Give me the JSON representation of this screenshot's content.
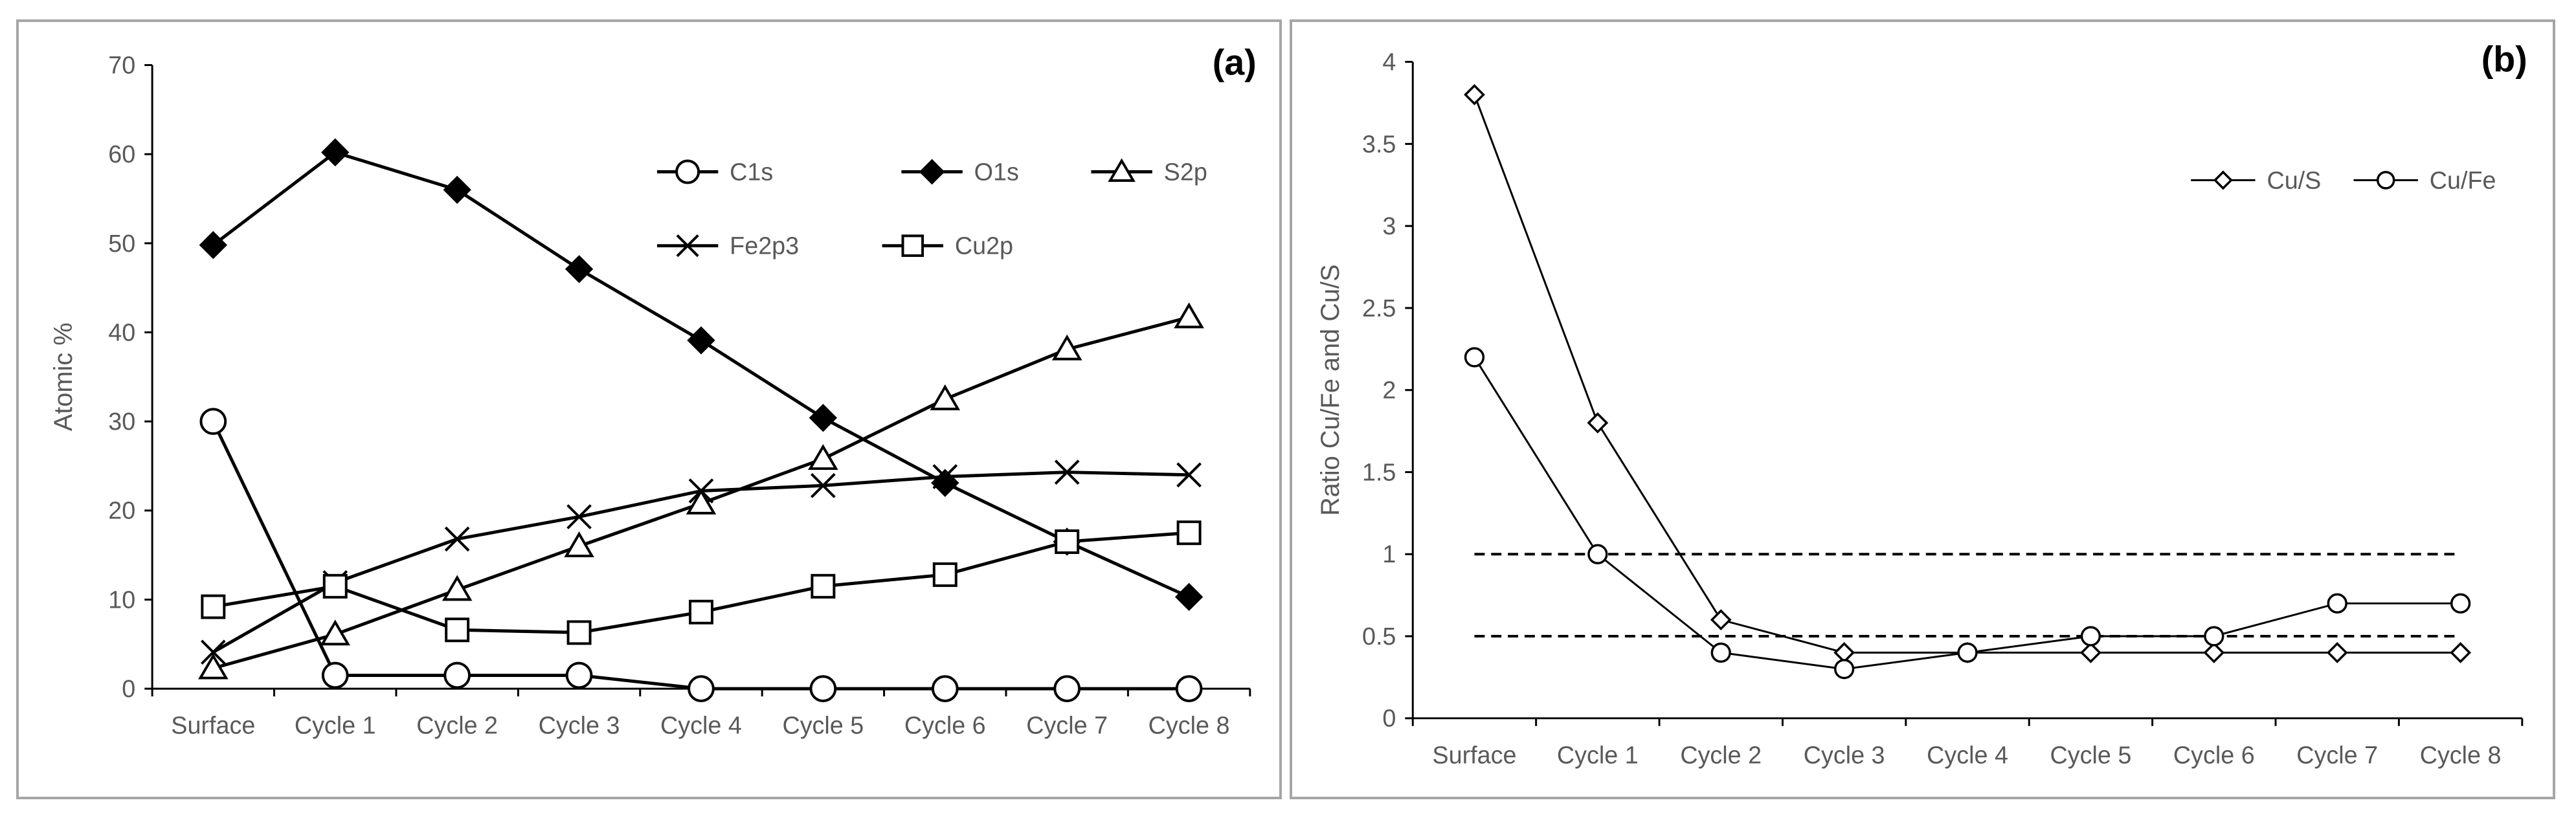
{
  "chart_data": [
    {
      "type": "line",
      "panel_label": "(a)",
      "ylabel": "Atomic %",
      "xlabel": "",
      "ylim": [
        0,
        70
      ],
      "yticks": [
        0,
        10,
        20,
        30,
        40,
        50,
        60,
        70
      ],
      "categories": [
        "Surface",
        "Cycle 1",
        "Cycle 2",
        "Cycle 3",
        "Cycle 4",
        "Cycle 5",
        "Cycle 6",
        "Cycle 7",
        "Cycle 8"
      ],
      "grid": false,
      "legend_placement": "top-right",
      "series": [
        {
          "name": "C1s",
          "marker": "circle-open",
          "values": [
            30,
            1.5,
            1.5,
            1.5,
            0,
            0,
            0,
            0,
            0
          ]
        },
        {
          "name": "O1s",
          "marker": "diamond-filled",
          "values": [
            49.8,
            60.2,
            56,
            47.1,
            39.1,
            30.4,
            23.1,
            16.5,
            10.3
          ]
        },
        {
          "name": "S2p",
          "marker": "triangle-open",
          "values": [
            2.3,
            6.1,
            11.1,
            16,
            20.8,
            25.8,
            32.5,
            38.1,
            41.7
          ]
        },
        {
          "name": "Fe2p3",
          "marker": "x",
          "values": [
            4.1,
            11.9,
            16.8,
            19.3,
            22.2,
            22.8,
            23.8,
            24.3,
            24
          ]
        },
        {
          "name": "Cu2p",
          "marker": "square-open",
          "values": [
            9.2,
            11.5,
            6.6,
            6.3,
            8.6,
            11.5,
            12.8,
            16.5,
            17.5
          ]
        }
      ]
    },
    {
      "type": "line",
      "panel_label": "(b)",
      "ylabel": "Ratio Cu/Fe and Cu/S",
      "xlabel": "",
      "ylim": [
        0,
        4
      ],
      "yticks": [
        0,
        0.5,
        1,
        1.5,
        2,
        2.5,
        3,
        3.5,
        4
      ],
      "categories": [
        "Surface",
        "Cycle 1",
        "Cycle 2",
        "Cycle 3",
        "Cycle 4",
        "Cycle 5",
        "Cycle 6",
        "Cycle 7",
        "Cycle 8"
      ],
      "grid": false,
      "legend_placement": "top-right",
      "reference_lines": [
        1,
        0.5
      ],
      "series": [
        {
          "name": "Cu/S",
          "marker": "diamond-open",
          "values": [
            3.8,
            1.8,
            0.6,
            0.4,
            0.4,
            0.4,
            0.4,
            0.4,
            0.4
          ]
        },
        {
          "name": "Cu/Fe",
          "marker": "circle-open",
          "values": [
            2.2,
            1.0,
            0.4,
            0.3,
            0.4,
            0.5,
            0.5,
            0.7,
            0.7
          ]
        }
      ]
    }
  ]
}
